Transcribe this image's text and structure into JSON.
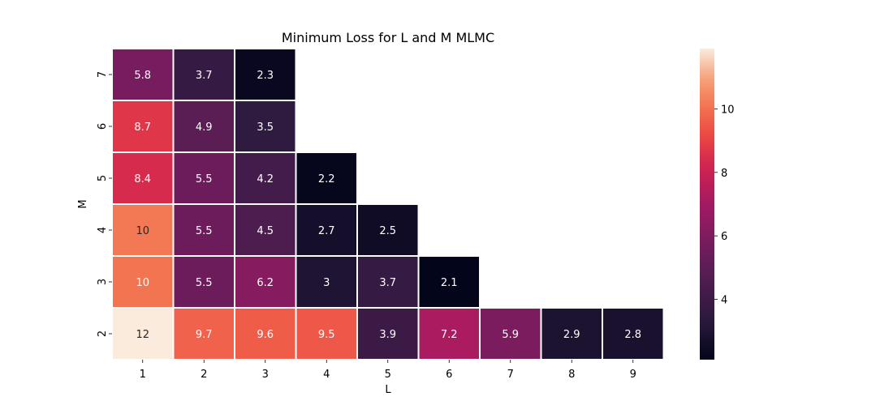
{
  "chart_data": {
    "type": "heatmap",
    "title": "Minimum Loss for L and M MLMC",
    "xlabel": "L",
    "ylabel": "M",
    "x_categories": [
      "1",
      "2",
      "3",
      "4",
      "5",
      "6",
      "7",
      "8",
      "9"
    ],
    "y_categories": [
      "7",
      "6",
      "5",
      "4",
      "3",
      "2"
    ],
    "values": [
      [
        5.8,
        3.7,
        2.3,
        null,
        null,
        null,
        null,
        null,
        null
      ],
      [
        8.7,
        4.9,
        3.5,
        null,
        null,
        null,
        null,
        null,
        null
      ],
      [
        8.4,
        5.5,
        4.2,
        2.2,
        null,
        null,
        null,
        null,
        null
      ],
      [
        10.2,
        5.5,
        4.5,
        2.7,
        2.5,
        null,
        null,
        null,
        null
      ],
      [
        10.1,
        5.5,
        6.2,
        3.0,
        3.7,
        2.1,
        null,
        null,
        null
      ],
      [
        11.9,
        9.7,
        9.6,
        9.5,
        3.9,
        7.2,
        5.9,
        2.9,
        2.8
      ]
    ],
    "cell_labels": [
      [
        "5.8",
        "3.7",
        "2.3",
        "",
        "",
        "",
        "",
        "",
        ""
      ],
      [
        "8.7",
        "4.9",
        "3.5",
        "",
        "",
        "",
        "",
        "",
        ""
      ],
      [
        "8.4",
        "5.5",
        "4.2",
        "2.2",
        "",
        "",
        "",
        "",
        ""
      ],
      [
        "10",
        "5.5",
        "4.5",
        "2.7",
        "2.5",
        "",
        "",
        "",
        ""
      ],
      [
        "10",
        "5.5",
        "6.2",
        "3",
        "3.7",
        "2.1",
        "",
        "",
        ""
      ],
      [
        "12",
        "9.7",
        "9.6",
        "9.5",
        "3.9",
        "7.2",
        "5.9",
        "2.9",
        "2.8"
      ]
    ],
    "colorbar": {
      "colormap": "rocket",
      "vmin": 2.1,
      "vmax": 11.9,
      "ticks": [
        "4",
        "6",
        "8",
        "10"
      ]
    },
    "grid": false,
    "legend": "colorbar-right"
  }
}
